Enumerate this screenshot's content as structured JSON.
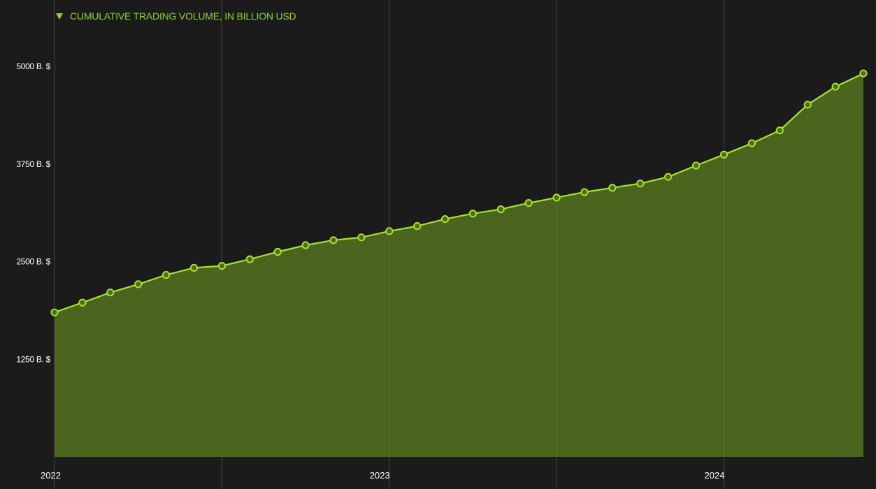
{
  "colors": {
    "background": "#1b1b1b",
    "line": "#a6e22e",
    "area": "#4f6b1e",
    "legend_text": "#8fd62b",
    "gridline": "#3a3a3a",
    "tick_text": "#ffffff"
  },
  "chart_data": {
    "type": "area",
    "title": "",
    "legend_placement": "top-left",
    "grid": "vertical lines at year boundaries",
    "series": [
      {
        "name": "CUMULATIVE TRADING VOLUME, IN BILLION USD",
        "marker": "hollow-circle",
        "x": [
          "2022-01",
          "2022-02",
          "2022-03",
          "2022-04",
          "2022-05",
          "2022-06",
          "2022-07",
          "2022-08",
          "2022-09",
          "2022-10",
          "2022-11",
          "2022-12",
          "2023-01",
          "2023-02",
          "2023-03",
          "2023-04",
          "2023-05",
          "2023-06",
          "2023-07",
          "2023-08",
          "2023-09",
          "2023-10",
          "2023-11",
          "2023-12",
          "2024-01",
          "2024-02",
          "2024-03",
          "2024-04",
          "2024-05",
          "2024-06"
        ],
        "values": [
          1850,
          1975,
          2105,
          2210,
          2330,
          2420,
          2445,
          2530,
          2625,
          2710,
          2775,
          2810,
          2890,
          2955,
          3045,
          3115,
          3170,
          3250,
          3320,
          3390,
          3445,
          3500,
          3585,
          3730,
          3870,
          4015,
          4180,
          4510,
          4740,
          4910
        ]
      }
    ],
    "y_ticks": [
      {
        "value": 1250,
        "label": "1250 B. $"
      },
      {
        "value": 2500,
        "label": "2500 B. $"
      },
      {
        "value": 3750,
        "label": "3750 B. $"
      },
      {
        "value": 5000,
        "label": "5000 B. $"
      }
    ],
    "x_ticks": [
      {
        "value": "2022-01",
        "label": "2022"
      },
      {
        "value": "2023-01",
        "label": "2023"
      },
      {
        "value": "2024-01",
        "label": "2024"
      }
    ],
    "xlim": [
      "2022-01",
      "2024-06"
    ],
    "ylim": [
      0,
      5000
    ]
  }
}
